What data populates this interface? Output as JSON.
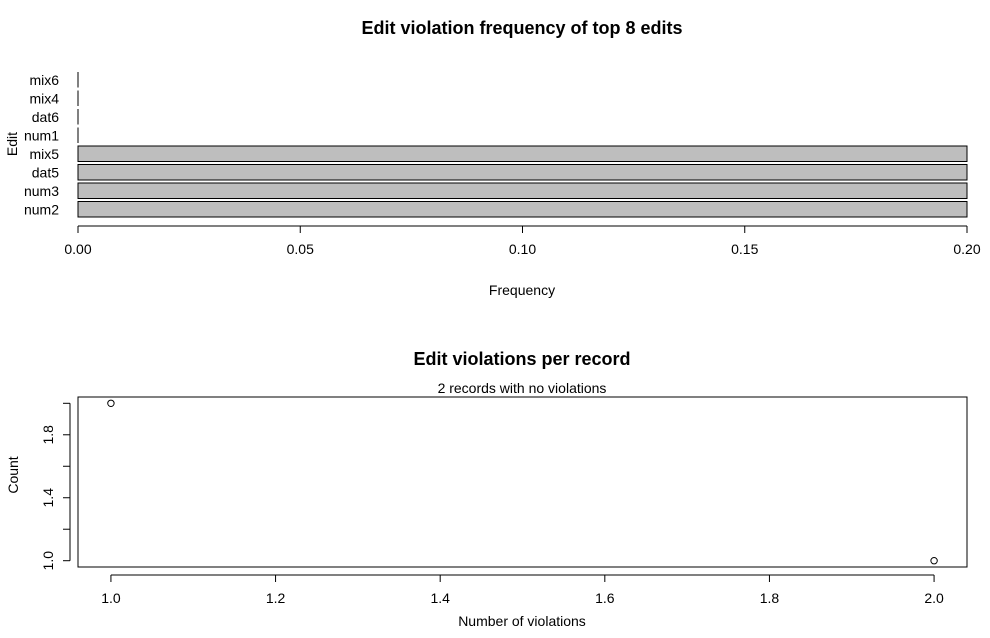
{
  "chart_data": [
    {
      "type": "bar",
      "orientation": "horizontal",
      "title": "Edit violation frequency of top 8 edits",
      "xlabel": "Frequency",
      "ylabel": "Edit",
      "categories": [
        "num2",
        "num3",
        "dat5",
        "mix5",
        "num1",
        "dat6",
        "mix4",
        "mix6"
      ],
      "values": [
        0.2,
        0.2,
        0.2,
        0.2,
        0,
        0,
        0,
        0
      ],
      "xlim": [
        0,
        0.2
      ],
      "xticks": [
        "0.00",
        "0.05",
        "0.10",
        "0.15",
        "0.20"
      ],
      "xtick_values": [
        0,
        0.05,
        0.1,
        0.15,
        0.2
      ],
      "bar_color": "#bebebe",
      "grid": false
    },
    {
      "type": "scatter",
      "title": "Edit violations per record",
      "subtitle": "2 records with no violations",
      "xlabel": "Number of violations",
      "ylabel": "Count",
      "points": [
        {
          "x": 1.0,
          "y": 2.0
        },
        {
          "x": 2.0,
          "y": 1.0
        }
      ],
      "xlim": [
        0.96,
        2.04
      ],
      "ylim": [
        0.96,
        2.04
      ],
      "xticks": [
        "1.0",
        "1.2",
        "1.4",
        "1.6",
        "1.8",
        "2.0"
      ],
      "xtick_values": [
        1.0,
        1.2,
        1.4,
        1.6,
        1.8,
        2.0
      ],
      "yticks": [
        "1.0",
        "1.4",
        "1.8"
      ],
      "ytick_values": [
        1.0,
        1.4,
        1.8
      ],
      "yminor_values": [
        1.2,
        1.6,
        2.0
      ],
      "grid": false
    }
  ]
}
